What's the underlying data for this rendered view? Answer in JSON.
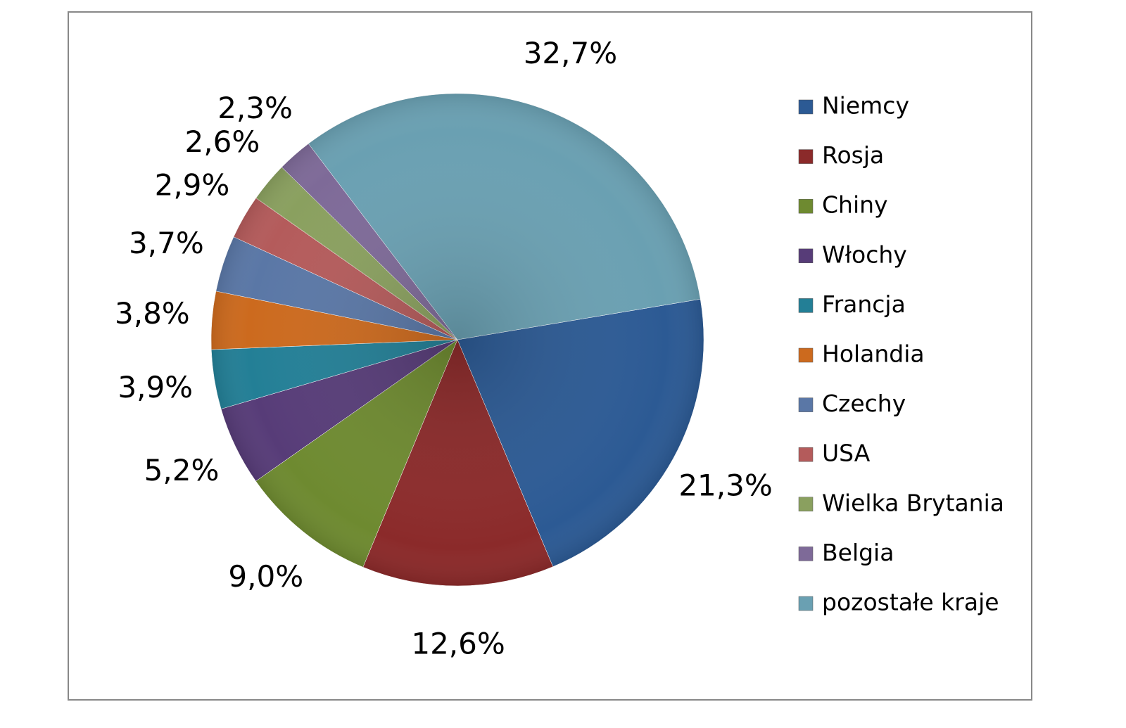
{
  "chart_data": {
    "type": "pie",
    "categories": [
      "Niemcy",
      "Rosja",
      "Chiny",
      "Włochy",
      "Francja",
      "Holandia",
      "Czechy",
      "USA",
      "Wielka Brytania",
      "Belgia",
      "pozostałe kraje"
    ],
    "values": [
      21.3,
      12.6,
      9.0,
      5.2,
      3.9,
      3.8,
      3.7,
      2.9,
      2.6,
      2.3,
      32.7
    ],
    "value_labels": [
      "21,3%",
      "12,6%",
      "9,0%",
      "5,2%",
      "3,9%",
      "3,8%",
      "3,7%",
      "2,9%",
      "2,6%",
      "2,3%",
      "32,7%"
    ],
    "colors": [
      "#2c5a94",
      "#8b2a2a",
      "#6e8a30",
      "#573c78",
      "#237f96",
      "#cc6a1e",
      "#5a77a6",
      "#b45b5b",
      "#8aa05f",
      "#7e6a98",
      "#6aa0b2"
    ],
    "legend": "right"
  }
}
